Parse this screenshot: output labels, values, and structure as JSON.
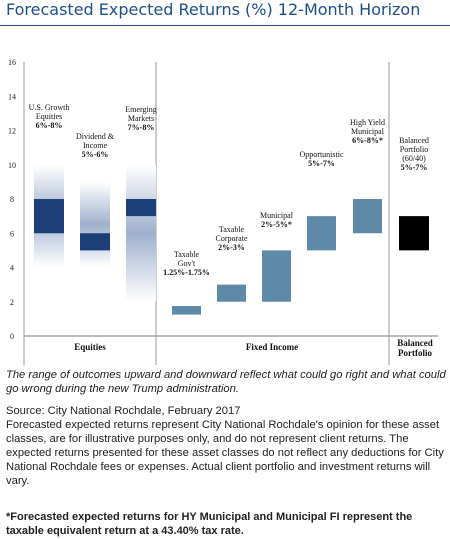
{
  "header": {
    "title": "Forecasted Expected Returns (%) 12-Month Horizon"
  },
  "chart_data": {
    "type": "bar",
    "ylim": [
      0,
      16
    ],
    "yticks": [
      0,
      2,
      4,
      6,
      8,
      10,
      12,
      14,
      16
    ],
    "groups": [
      "Equities",
      "Fixed Income",
      "Balanced Portfolio"
    ],
    "bars": [
      {
        "name": "U.S. Growth Equities",
        "range_label": "6%-8%",
        "group": "Equities",
        "low": 6,
        "high": 8,
        "outer_low": 4,
        "outer_high": 10
      },
      {
        "name": "Dividend & Income",
        "range_label": "5%-6%",
        "group": "Equities",
        "low": 5,
        "high": 6,
        "outer_low": 4,
        "outer_high": 9
      },
      {
        "name": "Emerging Markets",
        "range_label": "7%-8%",
        "group": "Equities",
        "low": 7,
        "high": 8,
        "outer_low": 2,
        "outer_high": 10
      },
      {
        "name": "Taxable Gov't",
        "range_label": "1.25%-1.75%",
        "group": "Fixed Income",
        "low": 1.25,
        "high": 1.75
      },
      {
        "name": "Taxable Corporate",
        "range_label": "2%-3%",
        "group": "Fixed Income",
        "low": 2,
        "high": 3
      },
      {
        "name": "Municipal",
        "range_label": "2%-5%*",
        "group": "Fixed Income",
        "low": 2,
        "high": 5
      },
      {
        "name": "Opportunistic",
        "range_label": "5%-7%",
        "group": "Fixed Income",
        "low": 5,
        "high": 7
      },
      {
        "name": "High Yield Municipal",
        "range_label": "6%-8%*",
        "group": "Fixed Income",
        "low": 6,
        "high": 8
      },
      {
        "name": "Balanced Portfolio (60/40)",
        "range_label": "5%-7%",
        "group": "Balanced Portfolio",
        "low": 5,
        "high": 7
      }
    ],
    "colors": {
      "equity_core": "#1d3f77",
      "equity_fade": "#c4cde0",
      "fixed_income": "#5e8aa8",
      "balanced": "#000000"
    }
  },
  "text": {
    "note": "The range of outcomes upward and downward reflect what could go right and what could go wrong during the new Trump administration.",
    "source": "Source: City National Rochdale, February 2017",
    "disclaimer": "Forecasted expected returns represent City National Rochdale's opinion for these asset classes, are for illustrative purposes only, and do not represent client returns. The expected returns presented for these asset classes do not reflect any deductions for City National Rochdale fees or expenses. Actual client portfolio and investment returns will vary.",
    "footnote": "*Forecasted expected returns for HY Municipal and Municipal FI represent the taxable equivalent return at a 43.40% tax rate."
  }
}
